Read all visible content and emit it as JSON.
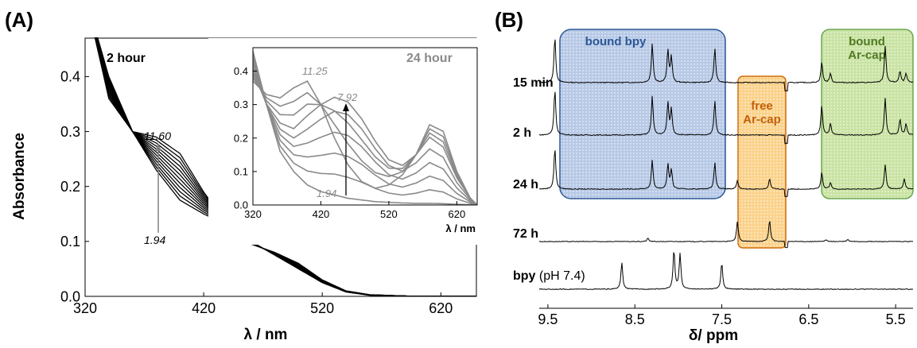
{
  "panel_a": {
    "label": "(A)",
    "ylabel": "Absorbance",
    "xlabel": "λ / nm",
    "main_legend": "2 hour",
    "inset_legend": "24 hour",
    "inset_xlabel": "λ / nm",
    "main_annotations": {
      "top": "11.60",
      "bottom": "1.94"
    },
    "inset_annotations": {
      "a": "11.25",
      "b": "7.92",
      "c": "1.94"
    }
  },
  "panel_b": {
    "label": "(B)",
    "xlabel": "δ/ ppm",
    "rows": [
      {
        "label": "15 min",
        "sub": ""
      },
      {
        "label": "2 h",
        "sub": ""
      },
      {
        "label": "24 h",
        "sub": ""
      },
      {
        "label": "72 h",
        "sub": ""
      },
      {
        "label": "bpy",
        "sub": " (pH 7.4)"
      }
    ],
    "boxes": {
      "bound_bpy": {
        "label": "bound bpy",
        "color": "#2b5797",
        "fill": "#b7c9e6"
      },
      "free_arcap": {
        "label1": "free",
        "label2": "Ar-cap",
        "color": "#d06d0e",
        "fill": "#fbd28b"
      },
      "bound_arcap": {
        "label1": "bound",
        "label2": "Ar-cap",
        "color": "#5a7f2e",
        "fill": "#c9e3a3"
      }
    },
    "xticks": [
      "9.5",
      "8.5",
      "7.5",
      "6.5",
      "5.5"
    ],
    "xlim": [
      9.6,
      5.3
    ]
  },
  "chart_data": [
    {
      "type": "line",
      "title": "2 hour",
      "xlabel": "λ / nm",
      "ylabel": "Absorbance",
      "xlim": [
        320,
        650
      ],
      "ylim": [
        0,
        0.47
      ],
      "xticks": [
        320,
        420,
        520,
        620
      ],
      "yticks": [
        0.0,
        0.1,
        0.2,
        0.3,
        0.4
      ],
      "series_count": 12,
      "pH_range": [
        1.94,
        11.6
      ],
      "series_low": {
        "name": "1.94",
        "x": [
          320,
          340,
          360,
          380,
          400,
          420,
          440,
          460,
          480,
          500,
          520,
          540,
          560,
          600,
          640
        ],
        "y": [
          0.55,
          0.4,
          0.3,
          0.23,
          0.175,
          0.15,
          0.13,
          0.1,
          0.075,
          0.05,
          0.025,
          0.008,
          0.002,
          0,
          0
        ]
      },
      "series_high": {
        "name": "11.60",
        "x": [
          320,
          340,
          360,
          380,
          400,
          420,
          440,
          460,
          480,
          500,
          520,
          540,
          560,
          600,
          640
        ],
        "y": [
          0.55,
          0.36,
          0.3,
          0.29,
          0.26,
          0.19,
          0.13,
          0.095,
          0.08,
          0.06,
          0.03,
          0.01,
          0.003,
          0,
          0
        ]
      }
    },
    {
      "type": "line",
      "title": "24 hour",
      "xlabel": "λ / nm",
      "xlim": [
        320,
        650
      ],
      "ylim": [
        0,
        0.47
      ],
      "xticks": [
        320,
        420,
        520,
        620
      ],
      "yticks": [
        0.0,
        0.1,
        0.2,
        0.3,
        0.4
      ],
      "pH_range": [
        1.94,
        11.25
      ],
      "series_low": {
        "name": "1.94",
        "x": [
          320,
          340,
          360,
          380,
          400,
          420,
          440,
          460,
          480,
          500,
          520,
          540,
          560,
          580,
          600,
          620,
          640,
          650
        ],
        "y": [
          0.46,
          0.3,
          0.16,
          0.1,
          0.06,
          0.04,
          0.03,
          0.02,
          0.015,
          0.01,
          0.008,
          0.006,
          0.005,
          0.005,
          0.004,
          0.002,
          0.001,
          0
        ]
      },
      "series_high": {
        "name": "11.25",
        "x": [
          320,
          340,
          360,
          380,
          400,
          420,
          440,
          460,
          480,
          500,
          520,
          540,
          560,
          580,
          600,
          620,
          640,
          650
        ],
        "y": [
          0.37,
          0.33,
          0.32,
          0.35,
          0.37,
          0.3,
          0.2,
          0.12,
          0.07,
          0.05,
          0.06,
          0.09,
          0.15,
          0.24,
          0.22,
          0.1,
          0.02,
          0
        ]
      },
      "series_mid": {
        "name": "7.92",
        "x": [
          320,
          340,
          360,
          380,
          400,
          420,
          440,
          460,
          480,
          500,
          520,
          540,
          560,
          580,
          600,
          620,
          640,
          650
        ],
        "y": [
          0.4,
          0.3,
          0.24,
          0.22,
          0.26,
          0.3,
          0.33,
          0.32,
          0.27,
          0.2,
          0.14,
          0.12,
          0.15,
          0.2,
          0.17,
          0.08,
          0.02,
          0
        ]
      }
    },
    {
      "type": "line",
      "title": "",
      "xlabel": "δ/ ppm",
      "xlim": [
        9.6,
        5.3
      ],
      "xticks": [
        9.5,
        8.5,
        7.5,
        6.5,
        5.5
      ],
      "series": [
        {
          "name": "15 min",
          "peaks": [
            [
              9.42,
              1.0
            ],
            [
              8.3,
              0.85
            ],
            [
              8.12,
              0.7
            ],
            [
              8.08,
              0.55
            ],
            [
              7.58,
              0.75
            ],
            [
              6.35,
              0.45
            ],
            [
              6.25,
              0.2
            ],
            [
              5.62,
              0.8
            ],
            [
              5.45,
              0.25
            ],
            [
              5.38,
              0.2
            ]
          ]
        },
        {
          "name": "2 h",
          "peaks": [
            [
              9.42,
              1.0
            ],
            [
              8.3,
              0.85
            ],
            [
              8.12,
              0.7
            ],
            [
              8.08,
              0.55
            ],
            [
              7.58,
              0.75
            ],
            [
              6.35,
              0.65
            ],
            [
              6.25,
              0.25
            ],
            [
              5.62,
              0.8
            ],
            [
              5.45,
              0.35
            ],
            [
              5.38,
              0.25
            ]
          ]
        },
        {
          "name": "24 h",
          "peaks": [
            [
              9.42,
              1.0
            ],
            [
              8.3,
              0.7
            ],
            [
              8.12,
              0.6
            ],
            [
              8.08,
              0.45
            ],
            [
              7.58,
              0.65
            ],
            [
              7.32,
              0.2
            ],
            [
              6.95,
              0.25
            ],
            [
              6.35,
              0.4
            ],
            [
              6.25,
              0.15
            ],
            [
              5.62,
              0.6
            ],
            [
              5.4,
              0.25
            ]
          ]
        },
        {
          "name": "72 h",
          "peaks": [
            [
              8.35,
              0.1
            ],
            [
              7.32,
              0.6
            ],
            [
              6.95,
              0.65
            ],
            [
              6.3,
              0.06
            ],
            [
              6.05,
              0.06
            ]
          ]
        },
        {
          "name": "bpy (pH 7.4)",
          "peaks": [
            [
              8.65,
              0.75
            ],
            [
              8.05,
              1.1
            ],
            [
              7.98,
              1.0
            ],
            [
              7.5,
              0.75
            ]
          ]
        }
      ]
    }
  ]
}
